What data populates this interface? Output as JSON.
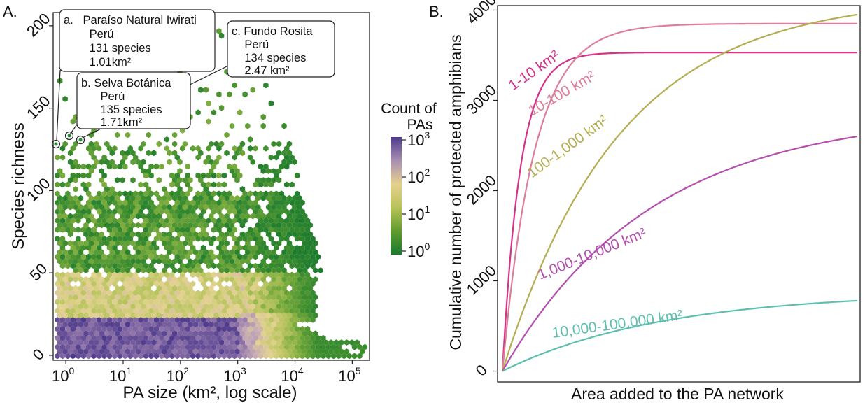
{
  "panel_a": {
    "panel_label": "A.",
    "colorbar": {
      "title_line1": "Count of",
      "title_line2": "PAs",
      "ticks": [
        "10",
        "10",
        "10",
        "10"
      ],
      "exps": [
        "3",
        "2",
        "1",
        "0"
      ],
      "colors": [
        "#1a7a2e",
        "#5e9b2e",
        "#b8c25a",
        "#e6d08f",
        "#a88fb1",
        "#4e3a8c"
      ]
    },
    "annotations": [
      {
        "lines": [
          "a.   Paraíso Natural Iwirati",
          "        Perú",
          "        131 species",
          "        1.01km²"
        ]
      },
      {
        "lines": [
          "b. Selva Botánica",
          "      Perú",
          "      135 species",
          "      1.71km²"
        ]
      },
      {
        "lines": [
          "c. Fundo Rosita",
          "    Perú",
          "    134 species",
          "    2.47 km²"
        ]
      }
    ],
    "chart_data": {
      "type": "heatmap",
      "subtype": "hexbin",
      "xlabel": "PA size (km², log scale)",
      "ylabel": "Species richness",
      "x_scale": "log",
      "xlim": [
        0.6,
        200000
      ],
      "ylim": [
        -3,
        208
      ],
      "x_ticks": [
        {
          "base": "10",
          "exp": "0",
          "value": 1
        },
        {
          "base": "10",
          "exp": "1",
          "value": 10
        },
        {
          "base": "10",
          "exp": "2",
          "value": 100
        },
        {
          "base": "10",
          "exp": "3",
          "value": 1000
        },
        {
          "base": "10",
          "exp": "4",
          "value": 10000
        },
        {
          "base": "10",
          "exp": "5",
          "value": 100000
        }
      ],
      "y_ticks": [
        "0",
        "50",
        "100",
        "150",
        "200"
      ],
      "color_scale": "log count of PAs, 1 to 1000",
      "highlighted_points": [
        {
          "label": "a",
          "name": "Paraíso Natural Iwirati",
          "country": "Perú",
          "species": 131,
          "area_km2": 1.01
        },
        {
          "label": "b",
          "name": "Selva Botánica",
          "country": "Perú",
          "species": 135,
          "area_km2": 1.71
        },
        {
          "label": "c",
          "name": "Fundo Rosita",
          "country": "Perú",
          "species": 134,
          "area_km2": 2.47
        }
      ]
    }
  },
  "panel_b": {
    "panel_label": "B.",
    "chart_data": {
      "type": "line",
      "xlabel": "Area added to the PA network",
      "ylabel": "Cumulative number of protected amphibians",
      "y_ticks": [
        "0",
        "1000",
        "2000",
        "3000",
        "4000"
      ],
      "ylim": [
        -120,
        4050
      ],
      "x_ticks": "none",
      "series": [
        {
          "name": "1-10 km²",
          "color": "#d5338b",
          "plateau": 3530
        },
        {
          "name": "10-100 km²",
          "color": "#dd7f99",
          "plateau": 3850
        },
        {
          "name": "100-1,000 km²",
          "color": "#b4ae52",
          "plateau": 3950
        },
        {
          "name": "1,000-10,000 km²",
          "color": "#b34fae",
          "plateau": 2600
        },
        {
          "name": "10,000-100,000 km²",
          "color": "#5ebfaf",
          "plateau": 780
        }
      ]
    }
  }
}
